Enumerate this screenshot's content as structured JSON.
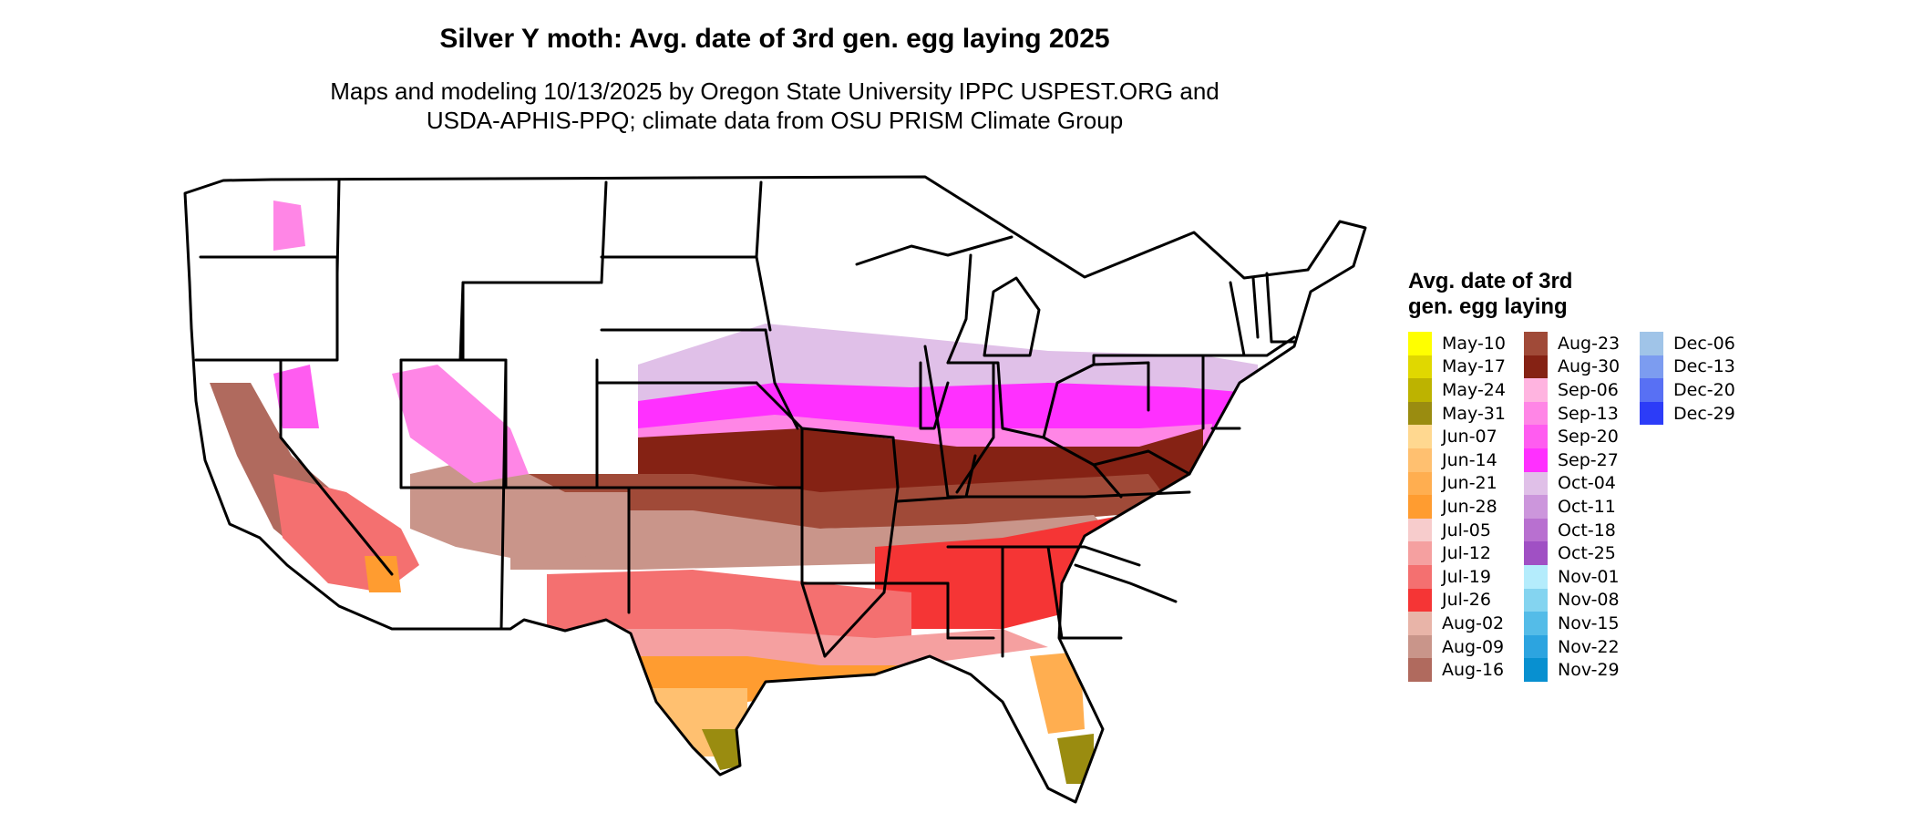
{
  "title": "Silver Y moth: Avg. date of 3rd gen. egg laying 2025",
  "subtitle_lines": [
    "Maps and modeling 10/13/2025 by Oregon State University IPPC USPEST.ORG and",
    "USDA-APHIS-PPQ; climate data from OSU PRISM Climate Group"
  ],
  "legend": {
    "title": "Avg. date of 3rd gen. egg laying",
    "columns": [
      [
        {
          "label": "May-10",
          "color": "#ffff00"
        },
        {
          "label": "May-17",
          "color": "#e0d800"
        },
        {
          "label": "May-24",
          "color": "#bdb300"
        },
        {
          "label": "May-31",
          "color": "#9a8c10"
        },
        {
          "label": "Jun-07",
          "color": "#ffd890"
        },
        {
          "label": "Jun-14",
          "color": "#ffc070"
        },
        {
          "label": "Jun-21",
          "color": "#ffae50"
        },
        {
          "label": "Jun-28",
          "color": "#ff9c30"
        },
        {
          "label": "Jul-05",
          "color": "#f7cccc"
        },
        {
          "label": "Jul-12",
          "color": "#f5a0a0"
        },
        {
          "label": "Jul-19",
          "color": "#f47070"
        },
        {
          "label": "Jul-26",
          "color": "#f53535"
        },
        {
          "label": "Aug-02",
          "color": "#e8b4a8"
        },
        {
          "label": "Aug-09",
          "color": "#c9958a"
        },
        {
          "label": "Aug-16",
          "color": "#b06a5e"
        }
      ],
      [
        {
          "label": "Aug-23",
          "color": "#a04a38"
        },
        {
          "label": "Aug-30",
          "color": "#852214"
        },
        {
          "label": "Sep-06",
          "color": "#ffb4e0"
        },
        {
          "label": "Sep-13",
          "color": "#ff86e6"
        },
        {
          "label": "Sep-20",
          "color": "#ff5cf0"
        },
        {
          "label": "Sep-27",
          "color": "#ff30ff"
        },
        {
          "label": "Oct-04",
          "color": "#e0c0e8"
        },
        {
          "label": "Oct-11",
          "color": "#cc96dc"
        },
        {
          "label": "Oct-18",
          "color": "#b870d0"
        },
        {
          "label": "Oct-25",
          "color": "#a050c4"
        },
        {
          "label": "Nov-01",
          "color": "#b4ecfc"
        },
        {
          "label": "Nov-08",
          "color": "#84d4f0"
        },
        {
          "label": "Nov-15",
          "color": "#54bce8"
        },
        {
          "label": "Nov-22",
          "color": "#2ca4e0"
        },
        {
          "label": "Nov-29",
          "color": "#0890d0"
        }
      ],
      [
        {
          "label": "Dec-06",
          "color": "#a0c4e8"
        },
        {
          "label": "Dec-13",
          "color": "#7c9cf0"
        },
        {
          "label": "Dec-20",
          "color": "#5870f4"
        },
        {
          "label": "Dec-29",
          "color": "#2c3cf8"
        }
      ]
    ]
  }
}
